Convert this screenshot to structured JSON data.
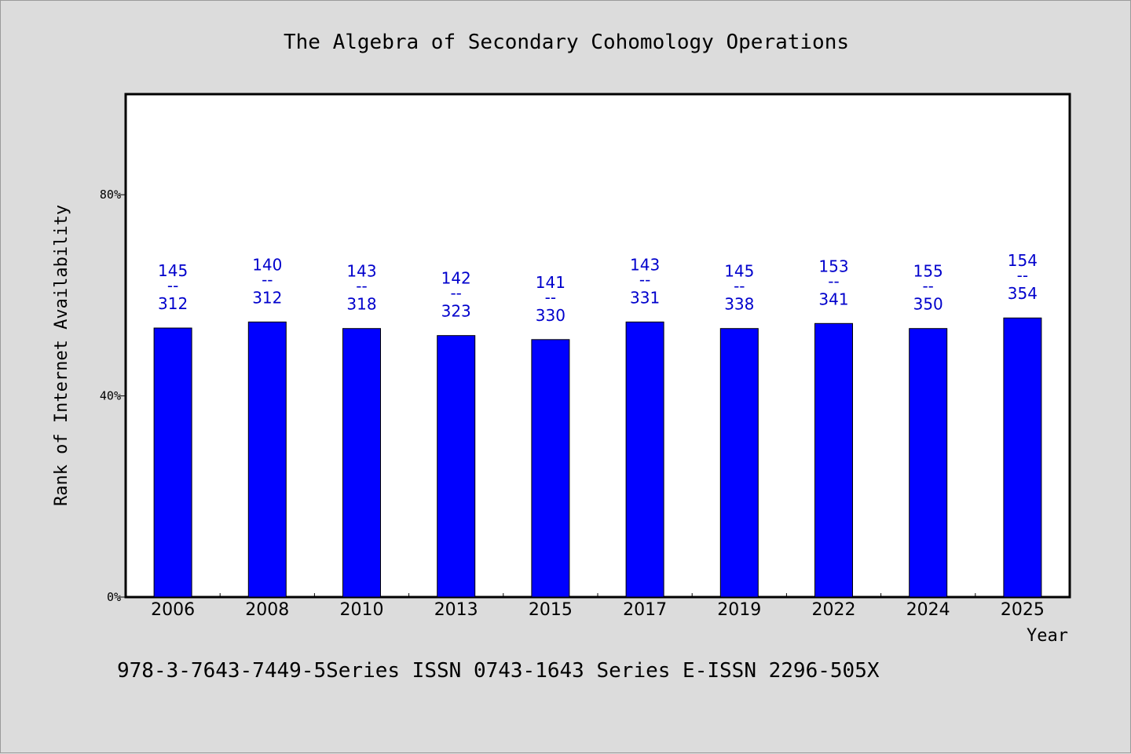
{
  "chart_data": {
    "type": "bar",
    "title": "The Algebra of Secondary Cohomology Operations",
    "xlabel": "Year",
    "ylabel": "Rank of Internet Availability",
    "ylim": [
      0,
      100
    ],
    "yticks": [
      {
        "value": 0,
        "label": "0%"
      },
      {
        "value": 40,
        "label": "40%"
      },
      {
        "value": 80,
        "label": "80%"
      }
    ],
    "categories": [
      "2006",
      "2008",
      "2010",
      "2013",
      "2015",
      "2017",
      "2019",
      "2022",
      "2024",
      "2025"
    ],
    "values": [
      53.5,
      54.7,
      53.4,
      52.0,
      51.2,
      54.7,
      53.4,
      54.4,
      53.4,
      55.5
    ],
    "bar_labels": [
      {
        "top": "145",
        "sep": "--",
        "bottom": "312"
      },
      {
        "top": "140",
        "sep": "--",
        "bottom": "312"
      },
      {
        "top": "143",
        "sep": "--",
        "bottom": "318"
      },
      {
        "top": "142",
        "sep": "--",
        "bottom": "323"
      },
      {
        "top": "141",
        "sep": "--",
        "bottom": "330"
      },
      {
        "top": "143",
        "sep": "--",
        "bottom": "331"
      },
      {
        "top": "145",
        "sep": "--",
        "bottom": "338"
      },
      {
        "top": "153",
        "sep": "--",
        "bottom": "341"
      },
      {
        "top": "155",
        "sep": "--",
        "bottom": "350"
      },
      {
        "top": "154",
        "sep": "--",
        "bottom": "354"
      }
    ],
    "colors": {
      "bar": "#0000ff",
      "label": "#0000cc",
      "plot_bg": "#ffffff",
      "page_bg": "#dcdcdc"
    },
    "grid": false,
    "legend": "none"
  },
  "footer": "978-3-7643-7449-5Series ISSN 0743-1643 Series E-ISSN 2296-505X"
}
